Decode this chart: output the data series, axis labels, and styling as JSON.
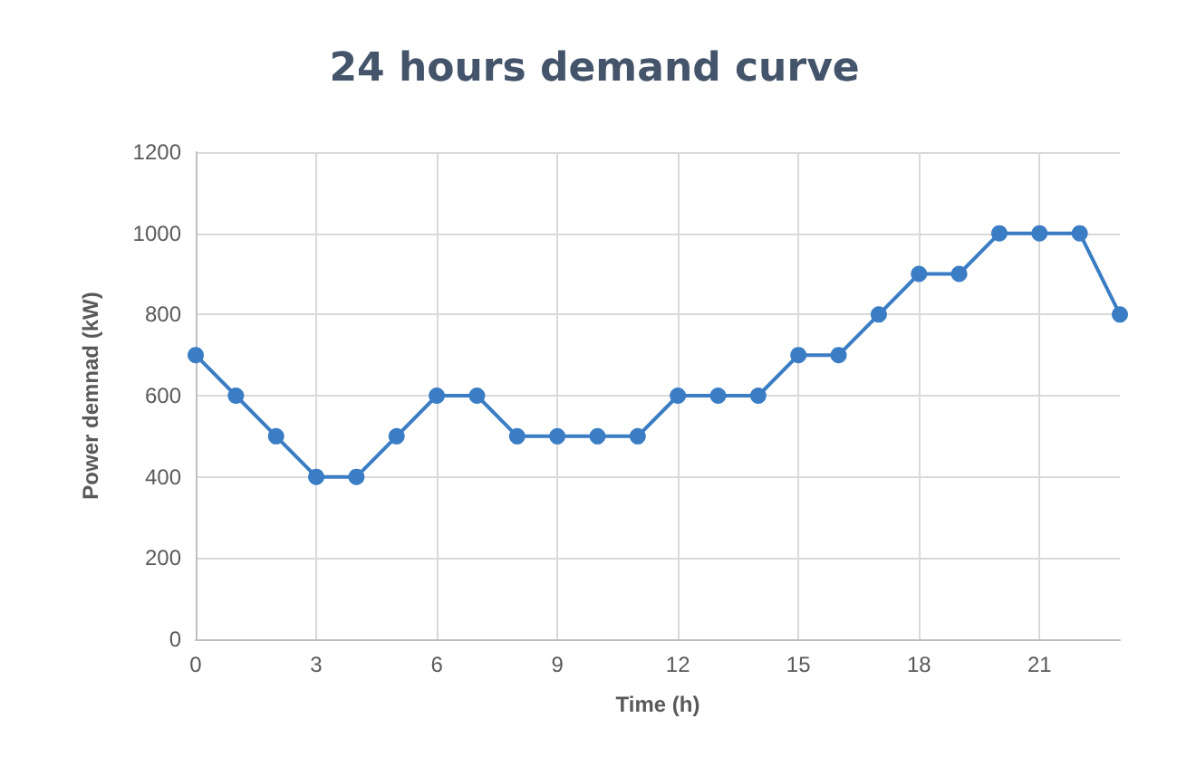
{
  "chart_data": {
    "type": "line",
    "title": "24 hours demand curve",
    "xlabel": "Time (h)",
    "ylabel": "Power demnad (kW)",
    "x": [
      0,
      1,
      2,
      3,
      4,
      5,
      6,
      7,
      8,
      9,
      10,
      11,
      12,
      13,
      14,
      15,
      16,
      17,
      18,
      19,
      20,
      21,
      22,
      23
    ],
    "series": [
      {
        "color": "#3b7dc4",
        "values": [
          700,
          600,
          500,
          400,
          400,
          500,
          600,
          600,
          500,
          500,
          500,
          500,
          600,
          600,
          600,
          700,
          700,
          800,
          900,
          900,
          1000,
          1000,
          1000,
          800
        ]
      }
    ],
    "xlim": [
      0,
      23
    ],
    "xticks": [
      0,
      3,
      6,
      9,
      12,
      15,
      18,
      21
    ],
    "ylim": [
      0,
      1200
    ],
    "yticks": [
      0,
      200,
      400,
      600,
      800,
      1000,
      1200
    ],
    "grid": true,
    "marker": "circle",
    "line_style": "solid"
  }
}
